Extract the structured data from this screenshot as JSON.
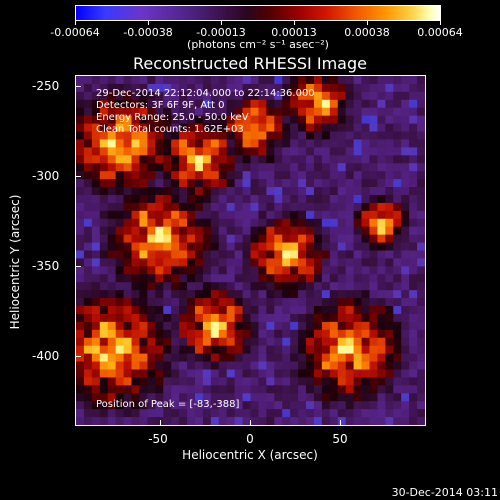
{
  "colorbar": {
    "labels": [
      "-0.00064",
      "-0.00038",
      "-0.00013",
      "0.00013",
      "0.00038",
      "0.00064"
    ],
    "units": "(photons cm⁻² s⁻¹ asec⁻²)"
  },
  "title": "Reconstructed RHESSI Image",
  "info": {
    "time": "29-Dec-2014 22:12:04.000 to 22:14:36.000",
    "detectors": "Detectors: 3F 6F 9F, Att 0",
    "energy": "Energy Range: 25.0 - 50.0 keV",
    "clean": "Clean    Total counts: 1.62E+03",
    "peak": "Position of Peak = [-83,-388]"
  },
  "axes": {
    "xlabel": "Heliocentric X (arcsec)",
    "ylabel": "Heliocentric Y (arcsec)",
    "xticks": [
      "-50",
      "0",
      "50"
    ],
    "yticks": [
      "-250",
      "-300",
      "-350",
      "-400"
    ]
  },
  "footer": "30-Dec-2014 03:11"
}
